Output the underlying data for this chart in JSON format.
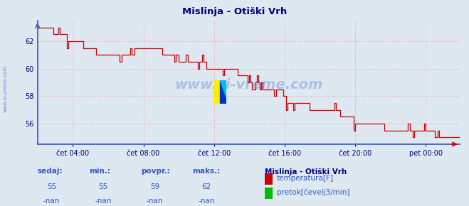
{
  "title": "Mislinja - Otiški Vrh",
  "title_color": "#000080",
  "bg_color": "#dde8f0",
  "plot_bg_color": "#dde8f0",
  "grid_color": "#ff9999",
  "grid_linestyle": ":",
  "x_label_color": "#000080",
  "y_label_color": "#000080",
  "line_color": "#cc0000",
  "line2_color": "#00bb00",
  "ylim": [
    54.5,
    63.5
  ],
  "yticks": [
    56,
    58,
    60,
    62
  ],
  "xlim": [
    0,
    287
  ],
  "xtick_positions": [
    24,
    72,
    120,
    168,
    216,
    264
  ],
  "xtick_labels": [
    "čet 04:00",
    "čet 08:00",
    "čet 12:00",
    "čet 16:00",
    "čet 20:00",
    "pet 00:00"
  ],
  "watermark": "www.si-vreme.com",
  "watermark_color": "#3355cc",
  "watermark_alpha": 0.28,
  "sidebar_text": "www.si-vreme.com",
  "sidebar_color": "#3355cc",
  "legend_title": "Mislinja - Otiški Vrh",
  "legend_title_color": "#000080",
  "legend_items": [
    "temperatura[F]",
    "pretok[čevelj3/min]"
  ],
  "legend_colors": [
    "#cc0000",
    "#00bb00"
  ],
  "footer_labels": [
    "sedaj:",
    "min.:",
    "povpr.:",
    "maks.:"
  ],
  "footer_row1": [
    "55",
    "55",
    "59",
    "62"
  ],
  "footer_row2": [
    "-nan",
    "-nan",
    "-nan",
    "-nan"
  ],
  "footer_color": "#3355cc",
  "spine_color": "#3355cc",
  "arrow_color": "#cc0000",
  "logo_yellow": "#ffee00",
  "logo_blue": "#0033cc",
  "logo_cyan": "#00bbee"
}
